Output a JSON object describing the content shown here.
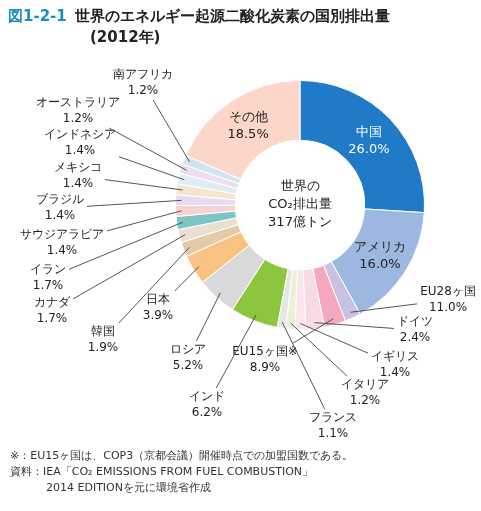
{
  "chart_data": {
    "type": "doughnut",
    "title": "世界のエネルギー起源二酸化炭素の国別排出量",
    "subtitle": "(2012年)",
    "annotations": {
      "figure_number": "図1-2-1",
      "center": [
        "世界の",
        "CO₂排出量",
        "317億トン"
      ],
      "notes": [
        "※：EU15ヶ国は、COP3（京都会議）開催時点での加盟国数である。",
        "資料：IEA「CO₂ EMISSIONS FROM FUEL COMBUSTION」",
        "2014 EDITIONを元に環境省作成"
      ]
    },
    "categories": [
      "中国",
      "アメリカ",
      "EU28ヶ国",
      "ドイツ",
      "イギリス",
      "イタリア",
      "フランス",
      "EU15ヶ国※",
      "インド",
      "ロシア",
      "日本",
      "韓国",
      "カナダ",
      "イラン",
      "サウジアラビア",
      "ブラジル",
      "メキシコ",
      "インドネシア",
      "オーストラリア",
      "南アフリカ",
      "その他"
    ],
    "values": [
      26.0,
      16.0,
      11.0,
      2.4,
      1.4,
      1.2,
      1.1,
      8.9,
      6.2,
      5.2,
      3.9,
      1.9,
      1.7,
      1.7,
      1.4,
      1.4,
      1.4,
      1.4,
      1.2,
      1.2,
      18.5
    ],
    "value_labels": [
      "26.0%",
      "16.0%",
      "11.0%",
      "2.4%",
      "1.4%",
      "1.2%",
      "1.1%",
      "8.9%",
      "6.2%",
      "5.2%",
      "3.9%",
      "1.9%",
      "1.7%",
      "1.7%",
      "1.4%",
      "1.4%",
      "1.4%",
      "1.4%",
      "1.2%",
      "1.2%",
      "18.5%"
    ],
    "members": {
      "EU28ヶ国": [
        "EU15ヶ国※"
      ],
      "EU15ヶ国※": [
        "ドイツ",
        "イギリス",
        "イタリア",
        "フランス"
      ]
    },
    "colors": [
      "#1f7bc8",
      "#9db8e0",
      "#c9c0e2",
      "#f6dbe4",
      "#fbe6ec",
      "#eef0d6",
      "#e6e6e6",
      "#f5a9c1",
      "#8cc63f",
      "#d9d9d9",
      "#f9c283",
      "#e3cbaa",
      "#ebdfd2",
      "#7fc4c6",
      "#f8d2d2",
      "#e6def0",
      "#f6e6d0",
      "#e2ecf6",
      "#ecdeee",
      "#cfe6f0",
      "#fbd6c9"
    ],
    "data_labels": true,
    "legend": false
  }
}
